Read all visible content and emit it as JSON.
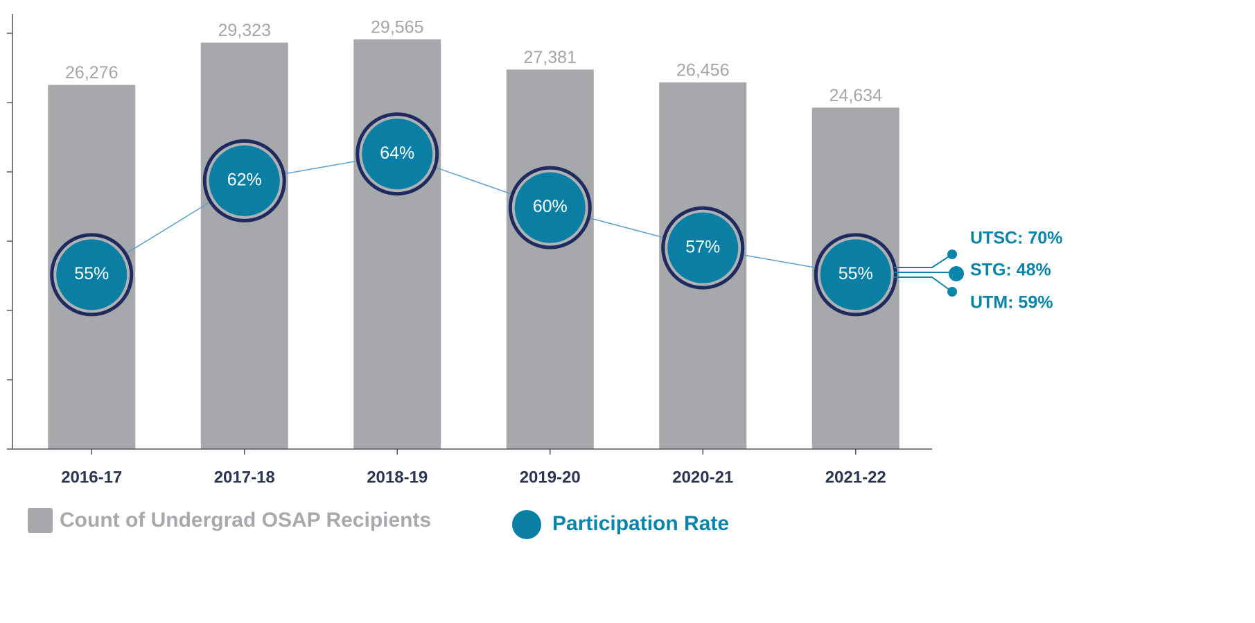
{
  "chart_data": {
    "type": "bar",
    "categories": [
      "2016-17",
      "2017-18",
      "2018-19",
      "2019-20",
      "2020-21",
      "2021-22"
    ],
    "ylim": [
      0,
      30000
    ],
    "yticks": [
      0,
      5000,
      10000,
      15000,
      20000,
      25000,
      30000
    ],
    "y2lim": [
      42,
      73
    ],
    "series": [
      {
        "name": "Count of Undergrad OSAP Recipients",
        "type": "bar",
        "color": "#a6a8ab",
        "values": [
          26276,
          29323,
          29565,
          27381,
          26456,
          24634
        ],
        "value_labels": [
          "26,276",
          "29,323",
          "29,565",
          "27,381",
          "26,456",
          "24,634"
        ]
      },
      {
        "name": "Participation Rate",
        "type": "line",
        "axis": "y2",
        "color": "#0b7fa3",
        "values": [
          55,
          62,
          64,
          60,
          57,
          55
        ],
        "value_labels": [
          "55%",
          "62%",
          "64%",
          "60%",
          "57%",
          "55%"
        ]
      }
    ],
    "annotations": [
      "UTSC: 70%",
      "STG: 48%",
      "UTM: 59%"
    ]
  }
}
